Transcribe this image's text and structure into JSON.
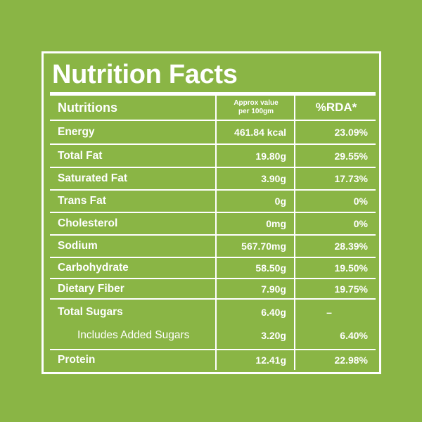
{
  "title": "Nutrition Facts",
  "header": {
    "nutrient": "Nutritions",
    "value_line1": "Approx value",
    "value_line2": "per 100gm",
    "rda": "%RDA*"
  },
  "rows": [
    {
      "name": "Energy",
      "value": "461.84 kcal",
      "rda": "23.09%"
    },
    {
      "name": "Total Fat",
      "value": "19.80g",
      "rda": "29.55%"
    },
    {
      "name": "Saturated Fat",
      "value": "3.90g",
      "rda": "17.73%"
    },
    {
      "name": "Trans Fat",
      "value": "0g",
      "rda": "0%"
    },
    {
      "name": "Cholesterol",
      "value": "0mg",
      "rda": "0%"
    },
    {
      "name": "Sodium",
      "value": "567.70mg",
      "rda": "28.39%"
    },
    {
      "name": "Carbohydrate",
      "value": "58.50g",
      "rda": "19.50%"
    },
    {
      "name": "Dietary Fiber",
      "value": "7.90g",
      "rda": "19.75%"
    },
    {
      "name": "Total Sugars",
      "value": "6.40g",
      "rda": "–"
    },
    {
      "name": "Includes Added Sugars",
      "value": "3.20g",
      "rda": "6.40%"
    },
    {
      "name": "Protein",
      "value": "12.41g",
      "rda": "22.98%"
    }
  ],
  "colors": {
    "background": "#8ab545",
    "foreground": "#ffffff"
  }
}
